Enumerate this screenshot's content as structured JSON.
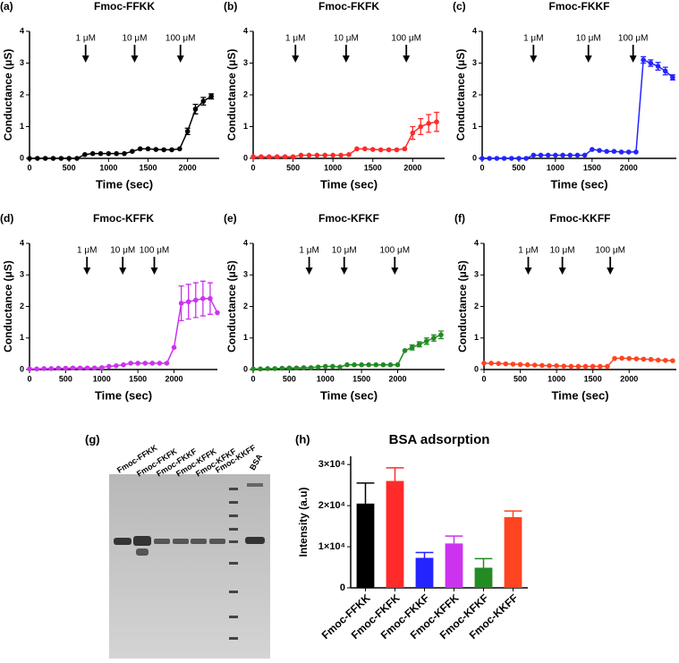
{
  "chart_data": [
    {
      "type": "line",
      "panel": "(a)",
      "title": "Fmoc-FFKK",
      "xlabel": "Time (sec)",
      "ylabel": "Conductance (μS)",
      "color": "#000000",
      "xlim": [
        0,
        2400
      ],
      "xticks": [
        0,
        500,
        1000,
        1500,
        2000
      ],
      "ylim": [
        0,
        4
      ],
      "yticks": [
        0,
        1,
        2,
        3,
        4
      ],
      "annotations": [
        {
          "text": "1 μM",
          "x": 710
        },
        {
          "text": "10 μM",
          "x": 1330
        },
        {
          "text": "100 μM",
          "x": 1910
        }
      ],
      "x": [
        0,
        100,
        200,
        300,
        400,
        500,
        600,
        700,
        800,
        900,
        1000,
        1100,
        1200,
        1300,
        1400,
        1500,
        1600,
        1700,
        1800,
        1900,
        2000,
        2100,
        2200,
        2300
      ],
      "values": [
        0,
        0,
        0,
        0,
        0,
        0,
        0,
        0.12,
        0.15,
        0.15,
        0.15,
        0.15,
        0.15,
        0.22,
        0.3,
        0.3,
        0.28,
        0.27,
        0.27,
        0.3,
        0.85,
        1.55,
        1.8,
        1.95
      ],
      "errors": [
        null,
        null,
        null,
        null,
        null,
        null,
        null,
        null,
        null,
        null,
        null,
        null,
        null,
        null,
        null,
        null,
        null,
        null,
        null,
        null,
        0.1,
        0.15,
        0.12,
        0.08
      ]
    },
    {
      "type": "line",
      "panel": "(b)",
      "title": "Fmoc-FKFK",
      "xlabel": "Time (sec)",
      "ylabel": "Conductance (μS)",
      "color": "#ff2a2a",
      "xlim": [
        0,
        2400
      ],
      "xticks": [
        0,
        500,
        1000,
        1500,
        2000
      ],
      "ylim": [
        0,
        4
      ],
      "yticks": [
        0,
        1,
        2,
        3,
        4
      ],
      "annotations": [
        {
          "text": "1 μM",
          "x": 530
        },
        {
          "text": "10 μM",
          "x": 1165
        },
        {
          "text": "100 μM",
          "x": 1920
        }
      ],
      "x": [
        0,
        100,
        200,
        300,
        400,
        500,
        600,
        700,
        800,
        900,
        1000,
        1100,
        1200,
        1300,
        1400,
        1500,
        1600,
        1700,
        1800,
        1900,
        2000,
        2100,
        2200,
        2300
      ],
      "values": [
        0.05,
        0.05,
        0.05,
        0.05,
        0.05,
        0.05,
        0.1,
        0.1,
        0.1,
        0.1,
        0.1,
        0.1,
        0.12,
        0.3,
        0.3,
        0.28,
        0.27,
        0.27,
        0.27,
        0.3,
        0.8,
        1.0,
        1.1,
        1.15
      ],
      "errors": [
        null,
        null,
        null,
        null,
        null,
        null,
        null,
        null,
        null,
        null,
        null,
        null,
        null,
        null,
        null,
        null,
        null,
        null,
        null,
        null,
        0.2,
        0.25,
        0.28,
        0.3
      ]
    },
    {
      "type": "line",
      "panel": "(c)",
      "title": "Fmoc-FKKF",
      "xlabel": "Time (sec)",
      "ylabel": "Conductance (μS)",
      "color": "#2424ff",
      "xlim": [
        0,
        2650
      ],
      "xticks": [
        0,
        500,
        1000,
        1500,
        2000
      ],
      "ylim": [
        0,
        4
      ],
      "yticks": [
        0,
        1,
        2,
        3,
        4
      ],
      "annotations": [
        {
          "text": "1 μM",
          "x": 700
        },
        {
          "text": "10 μM",
          "x": 1450
        },
        {
          "text": "100 μM",
          "x": 2060
        }
      ],
      "x": [
        0,
        100,
        200,
        300,
        400,
        500,
        600,
        700,
        800,
        900,
        1000,
        1100,
        1200,
        1300,
        1400,
        1500,
        1600,
        1700,
        1800,
        1900,
        2000,
        2100,
        2200,
        2300,
        2400,
        2500,
        2600
      ],
      "values": [
        0,
        0,
        0,
        0,
        0,
        0,
        0,
        0.1,
        0.1,
        0.1,
        0.1,
        0.1,
        0.1,
        0.1,
        0.1,
        0.28,
        0.25,
        0.22,
        0.22,
        0.2,
        0.2,
        0.2,
        3.1,
        3.0,
        2.9,
        2.75,
        2.55
      ],
      "errors": [
        null,
        null,
        null,
        null,
        null,
        null,
        null,
        null,
        null,
        null,
        null,
        null,
        null,
        null,
        null,
        null,
        null,
        null,
        null,
        null,
        null,
        null,
        0.1,
        0.1,
        0.12,
        0.12,
        0.08
      ]
    },
    {
      "type": "line",
      "panel": "(d)",
      "title": "Fmoc-KFFK",
      "xlabel": "Time (sec)",
      "ylabel": "Conductance (μS)",
      "color": "#cc33ee",
      "xlim": [
        0,
        2600
      ],
      "xticks": [
        0,
        500,
        1000,
        1500,
        2000
      ],
      "ylim": [
        0,
        4
      ],
      "yticks": [
        0,
        1,
        2,
        3,
        4
      ],
      "annotations": [
        {
          "text": "1 μM",
          "x": 795
        },
        {
          "text": "10 μM",
          "x": 1290
        },
        {
          "text": "100 μM",
          "x": 1727
        }
      ],
      "x": [
        0,
        100,
        200,
        300,
        400,
        500,
        600,
        700,
        800,
        900,
        1000,
        1100,
        1200,
        1300,
        1400,
        1500,
        1600,
        1700,
        1800,
        1900,
        2000,
        2100,
        2200,
        2300,
        2400,
        2500,
        2600
      ],
      "values": [
        0.02,
        0.02,
        0.03,
        0.03,
        0.04,
        0.04,
        0.05,
        0.05,
        0.05,
        0.05,
        0.06,
        0.1,
        0.12,
        0.15,
        0.2,
        0.2,
        0.2,
        0.2,
        0.2,
        0.2,
        0.7,
        2.1,
        2.15,
        2.2,
        2.25,
        2.25,
        1.8
      ],
      "errors": [
        null,
        null,
        null,
        null,
        null,
        null,
        null,
        null,
        null,
        null,
        null,
        null,
        null,
        null,
        null,
        null,
        null,
        null,
        null,
        null,
        null,
        0.55,
        0.55,
        0.55,
        0.55,
        0.5,
        null
      ]
    },
    {
      "type": "line",
      "panel": "(e)",
      "title": "Fmoc-KFKF",
      "xlabel": "Time (sec)",
      "ylabel": "Conductance (μS)",
      "color": "#228b22",
      "xlim": [
        0,
        2650
      ],
      "xticks": [
        0,
        500,
        1000,
        1500,
        2000
      ],
      "ylim": [
        0,
        4
      ],
      "yticks": [
        0,
        1,
        2,
        3,
        4
      ],
      "annotations": [
        {
          "text": "1 μM",
          "x": 775
        },
        {
          "text": "10 μM",
          "x": 1260
        },
        {
          "text": "100 μM",
          "x": 1960
        }
      ],
      "x": [
        0,
        100,
        200,
        300,
        400,
        500,
        600,
        700,
        800,
        900,
        1000,
        1100,
        1200,
        1300,
        1400,
        1500,
        1600,
        1700,
        1800,
        1900,
        2000,
        2100,
        2200,
        2300,
        2400,
        2500,
        2600
      ],
      "values": [
        0.02,
        0.02,
        0.03,
        0.03,
        0.04,
        0.05,
        0.05,
        0.06,
        0.06,
        0.08,
        0.1,
        0.1,
        0.08,
        0.15,
        0.15,
        0.15,
        0.15,
        0.15,
        0.15,
        0.15,
        0.15,
        0.6,
        0.7,
        0.8,
        0.9,
        1.0,
        1.1
      ],
      "errors": [
        null,
        null,
        null,
        null,
        null,
        null,
        null,
        null,
        null,
        null,
        null,
        null,
        null,
        null,
        null,
        null,
        null,
        null,
        null,
        null,
        null,
        null,
        0.08,
        0.08,
        0.1,
        0.1,
        0.12
      ]
    },
    {
      "type": "line",
      "panel": "(f)",
      "title": "Fmoc-KKFF",
      "xlabel": "Time (sec)",
      "ylabel": "Conductance (μS)",
      "color": "#ff4422",
      "xlim": [
        0,
        2650
      ],
      "xticks": [
        0,
        500,
        1000,
        1500,
        2000
      ],
      "ylim": [
        0,
        4
      ],
      "yticks": [
        0,
        1,
        2,
        3,
        4
      ],
      "annotations": [
        {
          "text": "1 μM",
          "x": 610
        },
        {
          "text": "10 μM",
          "x": 1080
        },
        {
          "text": "100 μM",
          "x": 1740
        }
      ],
      "x": [
        0,
        100,
        200,
        300,
        400,
        500,
        600,
        700,
        800,
        900,
        1000,
        1100,
        1200,
        1300,
        1400,
        1500,
        1600,
        1700,
        1800,
        1900,
        2000,
        2100,
        2200,
        2300,
        2400,
        2500,
        2600
      ],
      "values": [
        0.2,
        0.2,
        0.19,
        0.18,
        0.17,
        0.16,
        0.15,
        0.14,
        0.13,
        0.12,
        0.12,
        0.11,
        0.1,
        0.1,
        0.1,
        0.1,
        0.1,
        0.1,
        0.35,
        0.36,
        0.35,
        0.34,
        0.33,
        0.32,
        0.3,
        0.29,
        0.28
      ]
    },
    {
      "type": "bar",
      "panel": "(h)",
      "title": "BSA adsorption",
      "ylabel": "Intensity (a.u)",
      "categories": [
        "Fmoc-FFKK",
        "Fmoc-FKFK",
        "Fmoc-FKKF",
        "Fmoc-KFFK",
        "Fmoc-KFKF",
        "Fmoc-KKFF"
      ],
      "values": [
        20500,
        26000,
        7300,
        10800,
        4900,
        17200
      ],
      "errors": [
        5000,
        3200,
        1300,
        1800,
        2200,
        1500
      ],
      "colors": [
        "#000000",
        "#ff2a2a",
        "#2424ff",
        "#cc33ee",
        "#228b22",
        "#ff4422"
      ],
      "ylim": [
        0,
        32000
      ],
      "yticks": [
        0,
        {
          "value": 10000,
          "label": "1×10⁴"
        },
        {
          "value": 20000,
          "label": "2×10⁴"
        },
        {
          "value": 30000,
          "label": "3×10⁴"
        }
      ]
    }
  ],
  "gel": {
    "panel": "(g)",
    "lanes": [
      "Fmoc-FFKK",
      "Fmoc-FKFK",
      "Fmoc-FKKF",
      "Fmoc-KFFK",
      "Fmoc-KFKF",
      "Fmoc-KKFF",
      "BSA"
    ]
  }
}
